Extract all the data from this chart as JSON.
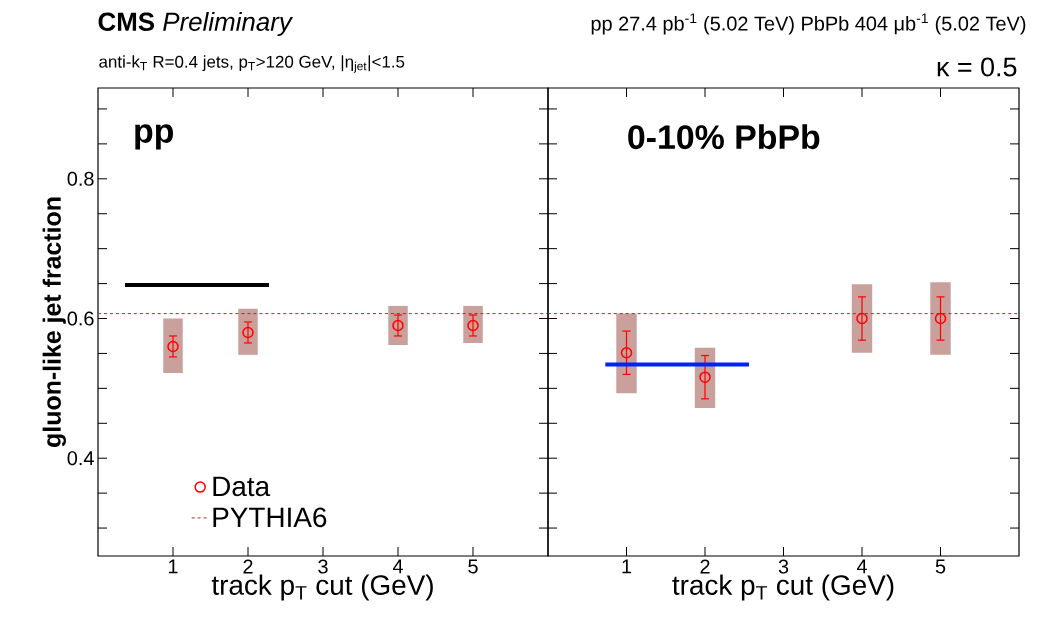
{
  "chart_data": [
    {
      "type": "scatter",
      "title": "**CMS** *Preliminary*",
      "annotations": [
        "pp",
        "anti-k$_{T}$ R=0.4 jets, p$_{T}$>120 GeV, |η$_{jet}$|<1.5"
      ],
      "xlabel": "track p$_{T}$ cut (GeV)",
      "ylabel": "gluon-like jet fraction",
      "series": [
        {
          "type": "bar",
          "color": "#c9a09c",
          "x": [
            1,
            2,
            4,
            5
          ],
          "base": [
            0.522,
            0.548,
            0.562,
            0.565
          ],
          "values": [
            0.078,
            0.066,
            0.056,
            0.053
          ]
        },
        {
          "name": "Data",
          "color": "#ff0000",
          "marker": "circle",
          "x": [
            1,
            2,
            4,
            5
          ],
          "values": [
            0.56,
            0.58,
            0.59,
            0.59
          ],
          "errors": [
            0.015,
            0.015,
            0.015,
            0.015
          ]
        },
        {
          "type": "line",
          "color": "#000000",
          "x": [
            0.36,
            2.28
          ],
          "values": [
            0.648,
            0.648
          ]
        }
      ],
      "ref_lines": [
        {
          "axis": "y",
          "value": 0.607,
          "label": "PYTHIA6",
          "color": "#a52a2a",
          "line_style": "dashed"
        }
      ],
      "legend": "bottom left",
      "xlim": [
        0,
        6
      ],
      "ylim": [
        0.26,
        0.93
      ],
      "xticks": [
        1,
        2,
        3,
        4,
        5
      ],
      "yticks": [
        {
          "value": 0.3,
          "label": null
        },
        {
          "value": 0.35,
          "label": null
        },
        0.4,
        {
          "value": 0.45,
          "label": null
        },
        {
          "value": 0.5,
          "label": null
        },
        {
          "value": 0.55,
          "label": null
        },
        0.6,
        {
          "value": 0.65,
          "label": null
        },
        {
          "value": 0.7,
          "label": null
        },
        {
          "value": 0.75,
          "label": null
        },
        0.8,
        {
          "value": 0.85,
          "label": null
        },
        {
          "value": 0.9,
          "label": null
        }
      ]
    },
    {
      "type": "scatter",
      "subtitle": "pp 27.4 pb$^{-1}$ (5.02 TeV)  PbPb 404 μb$^{-1}$ (5.02 TeV)",
      "annotations": [
        "0-10% PbPb",
        "κ = 0.5"
      ],
      "xlabel": "track p$_{T}$ cut (GeV)",
      "series": [
        {
          "type": "bar",
          "color": "#c9a09c",
          "x": [
            1,
            2,
            4,
            5
          ],
          "base": [
            0.493,
            0.472,
            0.551,
            0.548
          ],
          "values": [
            0.114,
            0.086,
            0.098,
            0.104
          ]
        },
        {
          "color": "#ff0000",
          "marker": "circle",
          "x": [
            1,
            2,
            4,
            5
          ],
          "values": [
            0.551,
            0.516,
            0.6,
            0.6
          ],
          "errors": [
            0.031,
            0.031,
            0.031,
            0.031
          ]
        },
        {
          "type": "line",
          "color": "#0022ff",
          "x": [
            0.73,
            2.56
          ],
          "values": [
            0.534,
            0.534
          ]
        }
      ],
      "ref_lines": [
        {
          "axis": "y",
          "value": 0.607,
          "color": "#a52a2a",
          "line_style": "dashed"
        }
      ],
      "tick_labels": "x",
      "xlim": [
        0,
        6
      ],
      "ylim": [
        0.26,
        0.93
      ],
      "xticks": [
        1,
        2,
        3,
        4,
        5
      ],
      "yticks": [
        {
          "value": 0.3,
          "label": null
        },
        {
          "value": 0.35,
          "label": null
        },
        0.4,
        {
          "value": 0.45,
          "label": null
        },
        {
          "value": 0.5,
          "label": null
        },
        {
          "value": 0.55,
          "label": null
        },
        0.6,
        {
          "value": 0.65,
          "label": null
        },
        {
          "value": 0.7,
          "label": null
        },
        {
          "value": 0.75,
          "label": null
        },
        0.8,
        {
          "value": 0.85,
          "label": null
        },
        {
          "value": 0.9,
          "label": null
        }
      ]
    }
  ]
}
